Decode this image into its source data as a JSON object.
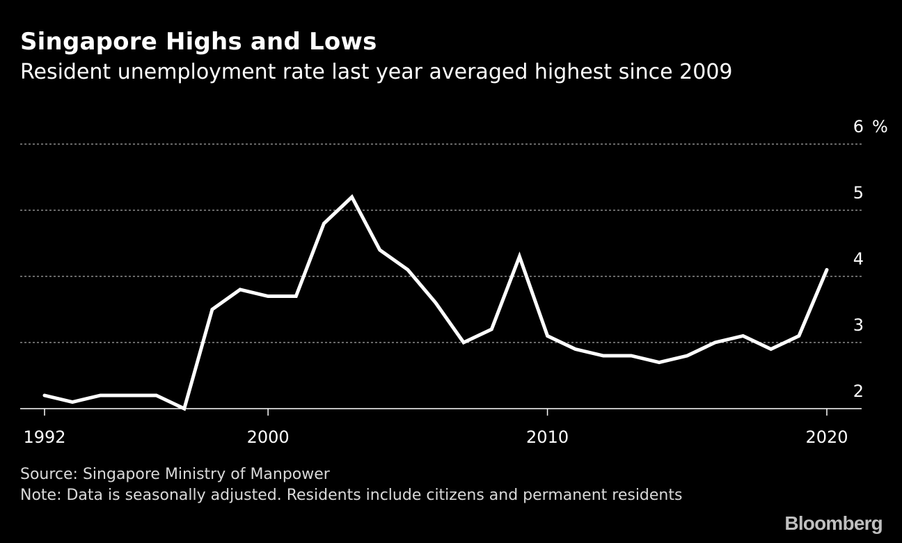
{
  "header": {
    "title": "Singapore Highs and Lows",
    "subtitle": "Resident unemployment rate last year averaged highest since 2009"
  },
  "footer": {
    "source": "Source: Singapore Ministry of Manpower",
    "note": "Note: Data is seasonally adjusted. Residents include citizens and permanent residents"
  },
  "brand": {
    "logo_text": "Bloomberg"
  },
  "colors": {
    "background": "#000000",
    "line": "#ffffff",
    "grid": "#8c8c8c",
    "axis": "#ffffff",
    "text": "#ffffff",
    "footer_text": "#d9d9d9",
    "logo": "#bfbfbf"
  },
  "chart_data": {
    "type": "line",
    "title": "Singapore Highs and Lows",
    "subtitle": "Resident unemployment rate last year averaged highest since 2009",
    "xlabel": "",
    "ylabel": "",
    "y_unit": "%",
    "xlim": [
      1992,
      2021
    ],
    "ylim": [
      2,
      6
    ],
    "x_ticks": [
      1992,
      2000,
      2010,
      2020
    ],
    "y_ticks": [
      2,
      3,
      4,
      5,
      6
    ],
    "y_axis_side": "right",
    "grid": "horizontal dotted",
    "legend": "none",
    "series": [
      {
        "x": [
          1992,
          1993,
          1994,
          1995,
          1996,
          1997,
          1998,
          1999,
          2000,
          2001,
          2002,
          2003,
          2004,
          2005,
          2006,
          2007,
          2008,
          2009,
          2010,
          2011,
          2012,
          2013,
          2014,
          2015,
          2016,
          2017,
          2018,
          2019,
          2020
        ],
        "values": [
          2.2,
          2.1,
          2.2,
          2.2,
          2.2,
          2.0,
          3.5,
          3.8,
          3.7,
          3.7,
          4.8,
          5.2,
          4.4,
          4.1,
          3.6,
          3.0,
          3.2,
          4.3,
          3.1,
          2.9,
          2.8,
          2.8,
          2.7,
          2.8,
          3.0,
          3.1,
          2.9,
          3.1,
          4.1
        ]
      }
    ]
  }
}
